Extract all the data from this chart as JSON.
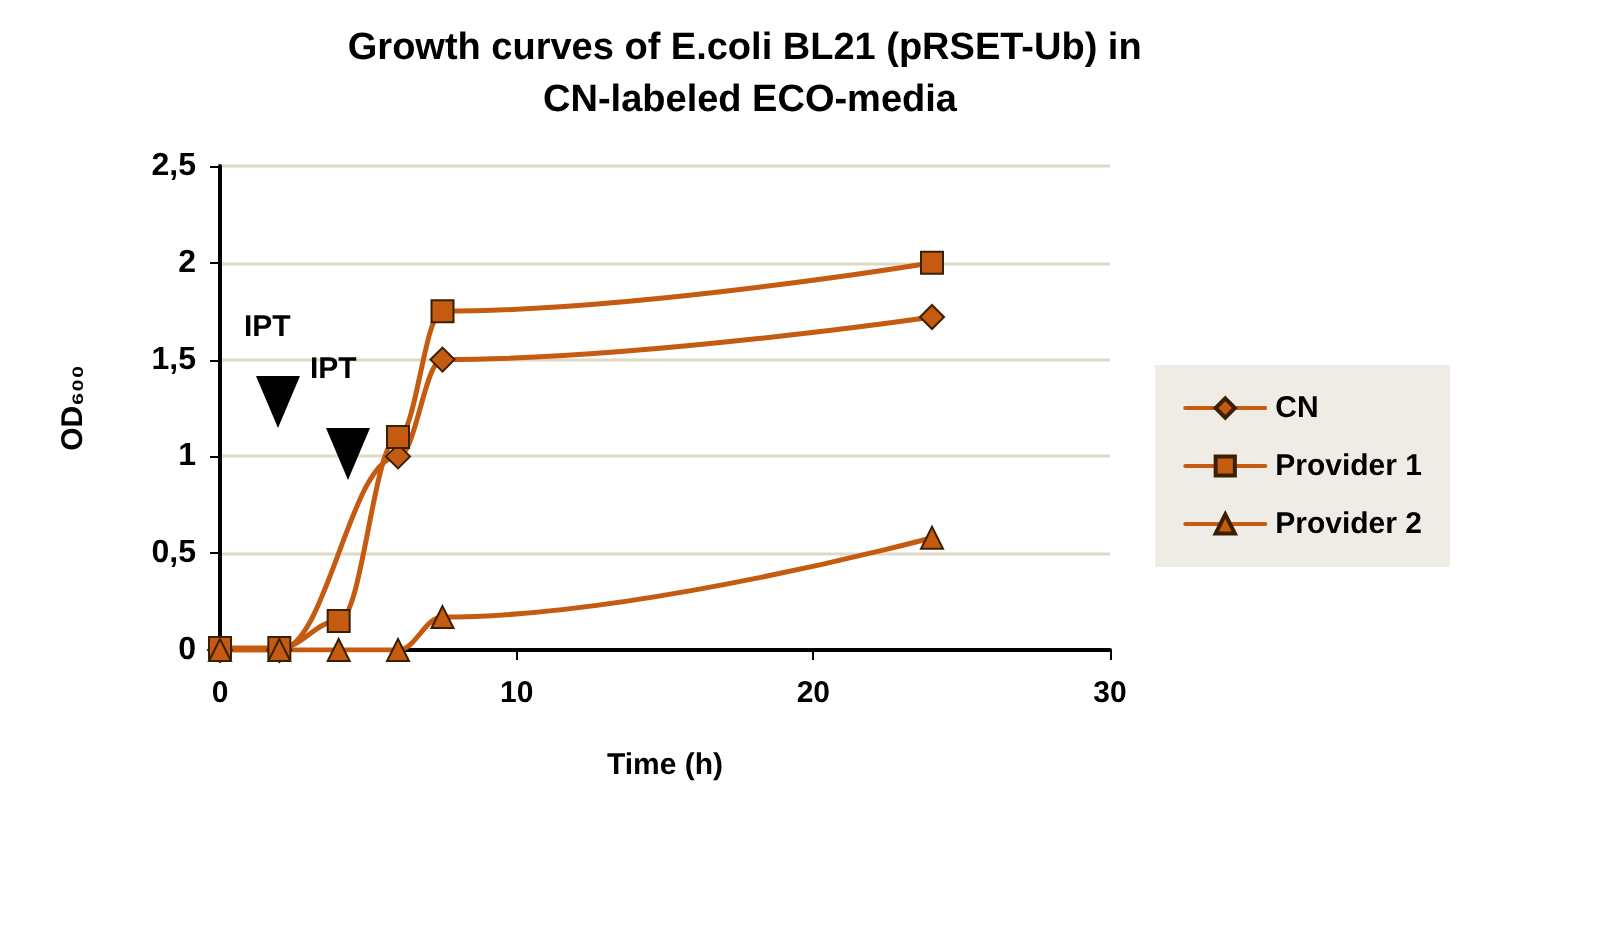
{
  "chart_data": {
    "type": "line",
    "title": "Growth curves of E.coli BL21 (pRSET-Ub) in CN-labeled ECO-media",
    "xlabel": "Time (h)",
    "ylabel": "OD₆₀₀",
    "x": [
      0,
      2,
      4,
      6,
      7.5,
      24
    ],
    "series": [
      {
        "name": "CN",
        "color": "#c55a11",
        "marker": "diamond",
        "values": [
          0,
          0,
          null,
          1.0,
          1.5,
          1.72
        ]
      },
      {
        "name": "Provider 1",
        "color": "#c55a11",
        "marker": "square",
        "values": [
          0.01,
          0.01,
          0.15,
          1.1,
          1.75,
          2.0
        ]
      },
      {
        "name": "Provider 2",
        "color": "#c55a11",
        "marker": "triangle",
        "values": [
          0,
          0,
          0,
          0,
          0.17,
          0.58
        ]
      }
    ],
    "annotations": [
      "IPT",
      "IPT"
    ],
    "xlim": [
      0,
      30
    ],
    "xticks": [
      0,
      10,
      20,
      30
    ],
    "ylim": [
      0,
      2.5
    ],
    "yticks": [
      0,
      {
        "value": 0.5,
        "label": "0,5"
      },
      1,
      {
        "value": 1.5,
        "label": "1,5"
      },
      2,
      {
        "value": 2.5,
        "label": "2,5"
      }
    ],
    "grid": "y",
    "legend": "right",
    "line_style": "solid"
  }
}
